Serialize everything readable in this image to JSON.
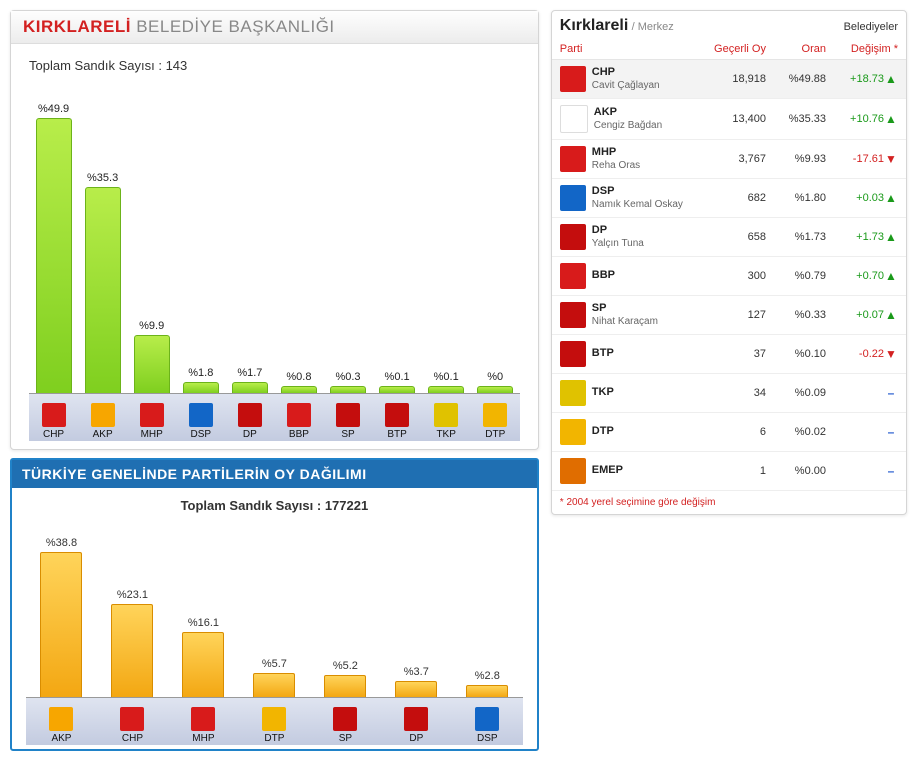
{
  "chart1": {
    "title_red": "KIRKLARELİ",
    "title_grey": "BELEDİYE BAŞKANLIĞI",
    "subtitle_prefix": "Toplam Sandık Sayısı :",
    "subtitle_value": "143",
    "bar_fill": "linear-gradient(to bottom,#b8ed4a,#7fcf1f)",
    "bar_border": "#6cb31a",
    "max_pct": 50,
    "items": [
      {
        "party": "CHP",
        "pct": 49.9,
        "label": "%49.9",
        "icon_bg": "#d81b1b"
      },
      {
        "party": "AKP",
        "pct": 35.3,
        "label": "%35.3",
        "icon_bg": "#f7a600",
        "icon_fg": "#333"
      },
      {
        "party": "MHP",
        "pct": 9.9,
        "label": "%9.9",
        "icon_bg": "#d81b1b"
      },
      {
        "party": "DSP",
        "pct": 1.8,
        "label": "%1.8",
        "icon_bg": "#1266c7"
      },
      {
        "party": "DP",
        "pct": 1.7,
        "label": "%1.7",
        "icon_bg": "#c40d0d"
      },
      {
        "party": "BBP",
        "pct": 0.8,
        "label": "%0.8",
        "icon_bg": "#d81b1b"
      },
      {
        "party": "SP",
        "pct": 0.3,
        "label": "%0.3",
        "icon_bg": "#c40d0d"
      },
      {
        "party": "BTP",
        "pct": 0.1,
        "label": "%0.1",
        "icon_bg": "#c40d0d"
      },
      {
        "party": "TKP",
        "pct": 0.1,
        "label": "%0.1",
        "icon_bg": "#e0c200"
      },
      {
        "party": "DTP",
        "pct": 0.0,
        "label": "%0",
        "icon_bg": "#f2b500"
      }
    ]
  },
  "chart2": {
    "title": "TÜRKİYE GENELİNDE PARTİLERİN OY DAĞILIMI",
    "subtitle_prefix": "Toplam Sandık Sayısı :",
    "subtitle_value": "177221",
    "bar_fill": "linear-gradient(to bottom,#ffd45a,#f3a712)",
    "bar_border": "#d98d00",
    "max_pct": 40,
    "items": [
      {
        "party": "AKP",
        "pct": 38.8,
        "label": "%38.8",
        "icon_bg": "#f7a600",
        "icon_fg": "#333"
      },
      {
        "party": "CHP",
        "pct": 23.1,
        "label": "%23.1",
        "icon_bg": "#d81b1b"
      },
      {
        "party": "MHP",
        "pct": 16.1,
        "label": "%16.1",
        "icon_bg": "#d81b1b"
      },
      {
        "party": "DTP",
        "pct": 5.7,
        "label": "%5.7",
        "icon_bg": "#f2b500"
      },
      {
        "party": "SP",
        "pct": 5.2,
        "label": "%5.2",
        "icon_bg": "#c40d0d"
      },
      {
        "party": "DP",
        "pct": 3.7,
        "label": "%3.7",
        "icon_bg": "#c40d0d"
      },
      {
        "party": "DSP",
        "pct": 2.8,
        "label": "%2.8",
        "icon_bg": "#1266c7"
      }
    ]
  },
  "table": {
    "title": "Kırklareli",
    "sub": "/ Merkez",
    "belediyeler": "Belediyeler",
    "head_party": "Parti",
    "head_votes": "Geçerli Oy",
    "head_ratio": "Oran",
    "head_change": "Değişim *",
    "footnote": "* 2004 yerel seçimine göre değişim",
    "rows": [
      {
        "party": "CHP",
        "cand": "Cavit Çağlayan",
        "votes": "18,918",
        "ratio": "%49.88",
        "change": "+18.73",
        "dir": "up",
        "icon_bg": "#d81b1b"
      },
      {
        "party": "AKP",
        "cand": "Cengiz Bağdan",
        "votes": "13,400",
        "ratio": "%35.33",
        "change": "+10.76",
        "dir": "up",
        "icon_bg": "#ffffff",
        "icon_fg": "#f7a600",
        "border": "#ddd"
      },
      {
        "party": "MHP",
        "cand": "Reha Oras",
        "votes": "3,767",
        "ratio": "%9.93",
        "change": "-17.61",
        "dir": "down",
        "icon_bg": "#d81b1b"
      },
      {
        "party": "DSP",
        "cand": "Namık Kemal Oskay",
        "votes": "682",
        "ratio": "%1.80",
        "change": "+0.03",
        "dir": "up",
        "icon_bg": "#1266c7"
      },
      {
        "party": "DP",
        "cand": "Yalçın Tuna",
        "votes": "658",
        "ratio": "%1.73",
        "change": "+1.73",
        "dir": "up",
        "icon_bg": "#c40d0d"
      },
      {
        "party": "BBP",
        "cand": "",
        "votes": "300",
        "ratio": "%0.79",
        "change": "+0.70",
        "dir": "up",
        "icon_bg": "#d81b1b"
      },
      {
        "party": "SP",
        "cand": "Nihat Karaçam",
        "votes": "127",
        "ratio": "%0.33",
        "change": "+0.07",
        "dir": "up",
        "icon_bg": "#c40d0d"
      },
      {
        "party": "BTP",
        "cand": "",
        "votes": "37",
        "ratio": "%0.10",
        "change": "-0.22",
        "dir": "down",
        "icon_bg": "#c40d0d"
      },
      {
        "party": "TKP",
        "cand": "",
        "votes": "34",
        "ratio": "%0.09",
        "change": "",
        "dir": "flat",
        "icon_bg": "#e0c200"
      },
      {
        "party": "DTP",
        "cand": "",
        "votes": "6",
        "ratio": "%0.02",
        "change": "",
        "dir": "flat",
        "icon_bg": "#f2b500"
      },
      {
        "party": "EMEP",
        "cand": "",
        "votes": "1",
        "ratio": "%0.00",
        "change": "",
        "dir": "flat",
        "icon_bg": "#e06d00"
      }
    ]
  }
}
